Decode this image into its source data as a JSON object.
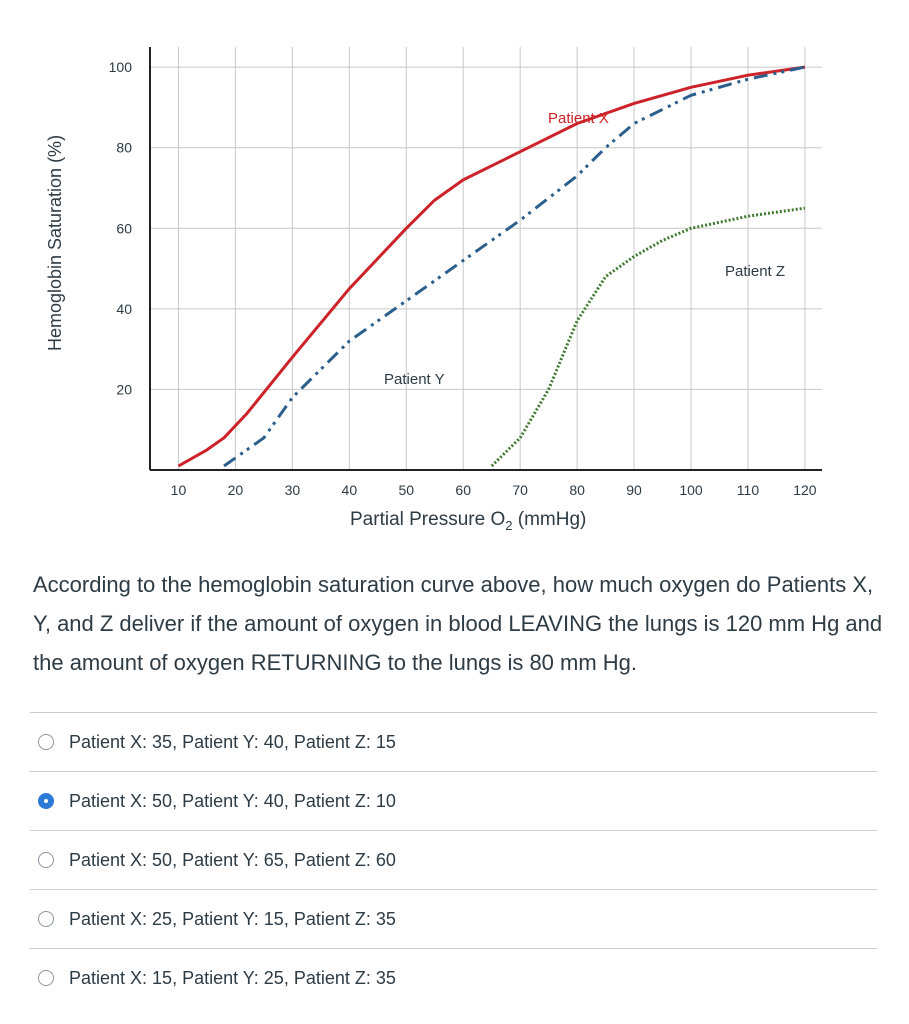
{
  "chart_data": {
    "type": "line",
    "xlabel": "Partial Pressure O",
    "xlabel_subscript": "2",
    "xlabel_unit": " (mmHg)",
    "ylabel": "Hemoglobin Saturation (%)",
    "xlim": [
      5,
      123
    ],
    "ylim": [
      0,
      105
    ],
    "x_ticks": [
      10,
      20,
      30,
      40,
      50,
      60,
      70,
      80,
      90,
      100,
      110,
      120
    ],
    "y_ticks": [
      20,
      40,
      60,
      80,
      100
    ],
    "grid": true,
    "series": [
      {
        "name": "Patient X",
        "color": "#cc2229",
        "style": "solid",
        "points": [
          [
            10,
            1
          ],
          [
            15,
            5
          ],
          [
            18,
            8
          ],
          [
            22,
            14
          ],
          [
            30,
            28
          ],
          [
            40,
            45
          ],
          [
            50,
            60
          ],
          [
            55,
            67
          ],
          [
            60,
            72
          ],
          [
            70,
            79
          ],
          [
            80,
            86
          ],
          [
            90,
            91
          ],
          [
            100,
            95
          ],
          [
            110,
            98
          ],
          [
            120,
            100
          ]
        ]
      },
      {
        "name": "Patient Y",
        "color": "#2a5e8c",
        "style": "dashdot",
        "points": [
          [
            18,
            1
          ],
          [
            25,
            8
          ],
          [
            30,
            18
          ],
          [
            40,
            32
          ],
          [
            50,
            42
          ],
          [
            60,
            52
          ],
          [
            70,
            62
          ],
          [
            80,
            73
          ],
          [
            85,
            80
          ],
          [
            90,
            86
          ],
          [
            100,
            93
          ],
          [
            110,
            97
          ],
          [
            120,
            100
          ]
        ]
      },
      {
        "name": "Patient Z",
        "color": "#3f7a2f",
        "style": "dotted",
        "points": [
          [
            65,
            1
          ],
          [
            70,
            8
          ],
          [
            75,
            20
          ],
          [
            80,
            37
          ],
          [
            85,
            48
          ],
          [
            90,
            53
          ],
          [
            95,
            57
          ],
          [
            100,
            60
          ],
          [
            110,
            63
          ],
          [
            120,
            65
          ]
        ]
      }
    ]
  },
  "question": {
    "text": "According to the hemoglobin saturation curve above, how much oxygen do Patients X, Y, and Z deliver if the amount of oxygen in blood LEAVING the lungs is 120 mm Hg and the amount of oxygen RETURNING to the lungs is 80 mm Hg.",
    "answers": [
      {
        "label": "Patient X: 35, Patient Y: 40, Patient Z: 15",
        "selected": false
      },
      {
        "label": "Patient X: 50, Patient Y: 40, Patient Z: 10",
        "selected": true
      },
      {
        "label": "Patient X: 50, Patient Y: 65, Patient Z: 60",
        "selected": false
      },
      {
        "label": "Patient X: 25, Patient Y: 15, Patient Z: 35",
        "selected": false
      },
      {
        "label": "Patient X: 15, Patient Y: 25, Patient Z: 35",
        "selected": false
      }
    ]
  }
}
